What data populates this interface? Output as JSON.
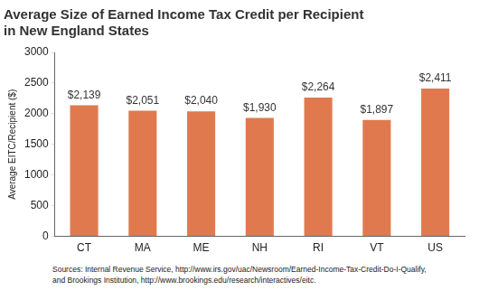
{
  "chart_data": {
    "type": "bar",
    "title": [
      "Average Size of Earned Income Tax Credit per Recipient",
      "in New England States"
    ],
    "y_label": "Average EITC/Recipient ($)",
    "annotations": [
      "Sources: Internal Revenue Service, http://www.irs.gov/uac/Newsroom/Earned-Income-Tax-Credit-Do-I-Qualify,",
      "and Brookings Institution, http://www.brookings.edu/research/interactives/eitc."
    ],
    "categories": [
      "CT",
      "MA",
      "ME",
      "NH",
      "RI",
      "VT",
      "US"
    ],
    "values": [
      2139,
      2051,
      2040,
      1930,
      2264,
      1897,
      2411
    ],
    "value_labels": [
      "$2,139",
      "$2,051",
      "$2,040",
      "$1,930",
      "$2,264",
      "$1,897",
      "$2,411"
    ],
    "color": "#e07a4e",
    "ylim": [
      0,
      3000
    ],
    "yticks": [
      0,
      500,
      1000,
      1500,
      2000,
      2500,
      3000
    ],
    "grid": false,
    "data_labels": true
  }
}
